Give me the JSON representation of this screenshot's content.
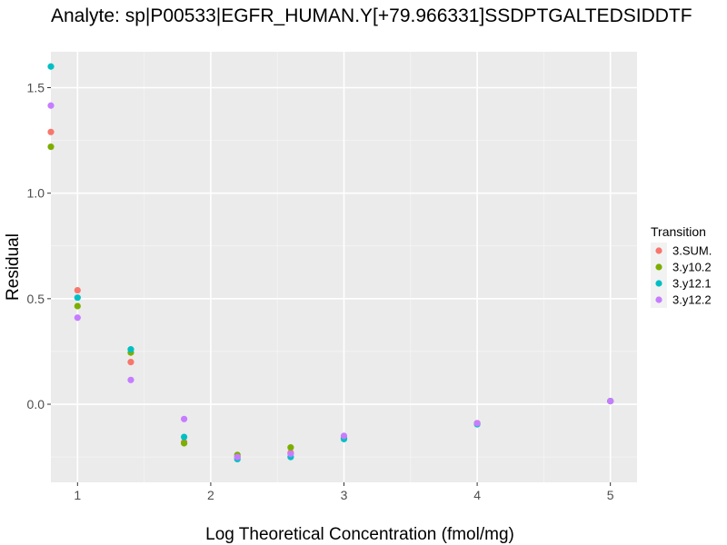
{
  "chart_data": {
    "type": "scatter",
    "title": "Analyte: sp|P00533|EGFR_HUMAN.Y[+79.966331]SSDPTGALTEDSIDDTF",
    "xlabel": "Log Theoretical Concentration (fmol/mg)",
    "ylabel": "Residual",
    "xlim": [
      0.8,
      5.2
    ],
    "ylim": [
      -0.37,
      1.67
    ],
    "x_ticks": [
      1,
      2,
      3,
      4,
      5
    ],
    "y_ticks": [
      0.0,
      0.5,
      1.0,
      1.5
    ],
    "x_tick_labels": [
      "1",
      "2",
      "3",
      "4",
      "5"
    ],
    "y_tick_labels": [
      "0.0",
      "0.5",
      "1.0",
      "1.5"
    ],
    "grid": true,
    "legend_placement": "right",
    "legend_title": "Transition",
    "series": [
      {
        "name": "3.SUM.",
        "color": "#F8766D",
        "points": [
          [
            0.8,
            1.29
          ],
          [
            1.0,
            0.54
          ],
          [
            1.4,
            0.2
          ],
          [
            1.8,
            -0.18
          ],
          [
            2.2,
            -0.25
          ],
          [
            2.6,
            -0.23
          ],
          [
            3.0,
            -0.16
          ],
          [
            4.0,
            -0.09
          ],
          [
            5.0,
            0.015
          ]
        ]
      },
      {
        "name": "3.y10.2",
        "color": "#7CAE00",
        "points": [
          [
            0.8,
            1.22
          ],
          [
            1.0,
            0.465
          ],
          [
            1.4,
            0.245
          ],
          [
            1.8,
            -0.185
          ],
          [
            2.2,
            -0.24
          ],
          [
            2.6,
            -0.205
          ],
          [
            3.0,
            -0.16
          ],
          [
            4.0,
            -0.09
          ],
          [
            5.0,
            0.015
          ]
        ]
      },
      {
        "name": "3.y12.1",
        "color": "#00BFC4",
        "points": [
          [
            0.8,
            1.6
          ],
          [
            1.0,
            0.505
          ],
          [
            1.4,
            0.26
          ],
          [
            1.8,
            -0.155
          ],
          [
            2.2,
            -0.26
          ],
          [
            2.6,
            -0.25
          ],
          [
            3.0,
            -0.165
          ],
          [
            4.0,
            -0.095
          ],
          [
            5.0,
            0.015
          ]
        ]
      },
      {
        "name": "3.y12.2",
        "color": "#C77CFF",
        "points": [
          [
            0.8,
            1.415
          ],
          [
            1.0,
            0.41
          ],
          [
            1.4,
            0.115
          ],
          [
            1.8,
            -0.07
          ],
          [
            2.2,
            -0.25
          ],
          [
            2.6,
            -0.235
          ],
          [
            3.0,
            -0.15
          ],
          [
            4.0,
            -0.09
          ],
          [
            5.0,
            0.015
          ]
        ]
      }
    ]
  }
}
